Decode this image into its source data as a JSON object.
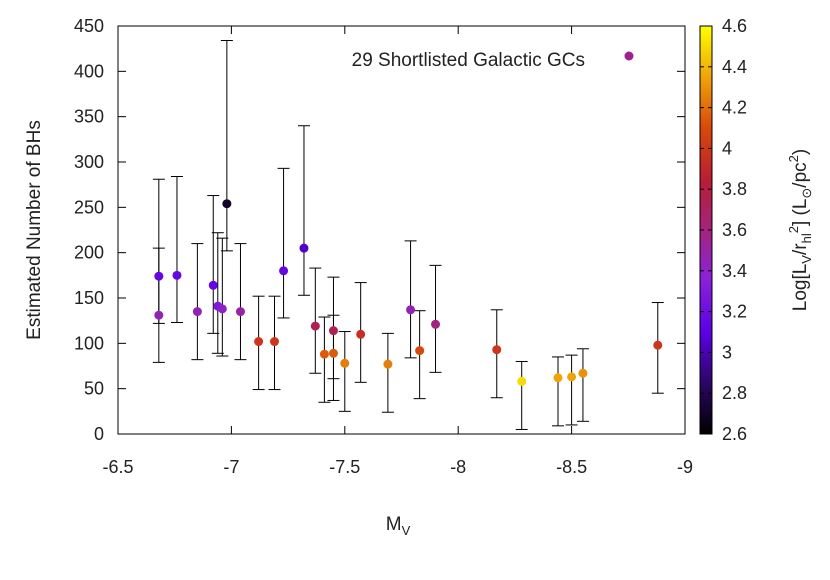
{
  "chart_data": {
    "type": "scatter",
    "title": "",
    "xlabel": "M",
    "xlabel_sub": "V",
    "ylabel": "Estimated Number of BHs",
    "xlim": [
      -6.5,
      -9
    ],
    "ylim": [
      0,
      450
    ],
    "x_ticks": [
      "-6.5",
      "-7",
      "-7.5",
      "-8",
      "-8.5",
      "-9"
    ],
    "y_ticks": [
      "0",
      "50",
      "100",
      "150",
      "200",
      "250",
      "300",
      "350",
      "400",
      "450"
    ],
    "legend": {
      "label": "29 Shortlisted Galactic GCs",
      "position": "top-right",
      "marker_color": "#a0208e"
    },
    "colorbar": {
      "label": "Log[L_V/r_hl^2] (L_⊙/pc^2)",
      "label_parts": {
        "pre": "Log[L",
        "sub1": "V",
        "mid1": "/r",
        "sub2": "hl",
        "sup1": "2",
        "mid2": "] (L",
        "sub3": "⊙",
        "mid3": "/pc",
        "sup2": "2",
        "post": ")"
      },
      "range": [
        2.6,
        4.6
      ],
      "ticks": [
        "2.6",
        "2.8",
        "3",
        "3.2",
        "3.4",
        "3.6",
        "3.8",
        "4",
        "4.2",
        "4.4",
        "4.6"
      ],
      "colormap": "black-blue-purple-red-orange-yellow"
    },
    "points": [
      {
        "x": -6.68,
        "y": 131,
        "lo": 79,
        "hi": 205,
        "c": 3.45
      },
      {
        "x": -6.68,
        "y": 174,
        "lo": 122,
        "hi": 281,
        "c": 3.15
      },
      {
        "x": -6.76,
        "y": 175,
        "lo": 123,
        "hi": 284,
        "c": 3.15
      },
      {
        "x": -6.85,
        "y": 135,
        "lo": 82,
        "hi": 210,
        "c": 3.45
      },
      {
        "x": -6.92,
        "y": 164,
        "lo": 111,
        "hi": 263,
        "c": 3.15
      },
      {
        "x": -6.94,
        "y": 141,
        "lo": 89,
        "hi": 222,
        "c": 3.3
      },
      {
        "x": -6.96,
        "y": 138,
        "lo": 86,
        "hi": 216,
        "c": 3.4
      },
      {
        "x": -6.98,
        "y": 254,
        "lo": 202,
        "hi": 434,
        "c": 2.7
      },
      {
        "x": -7.04,
        "y": 135,
        "lo": 82,
        "hi": 210,
        "c": 3.5
      },
      {
        "x": -7.12,
        "y": 102,
        "lo": 49,
        "hi": 152,
        "c": 4.0
      },
      {
        "x": -7.19,
        "y": 102,
        "lo": 49,
        "hi": 152,
        "c": 4.0
      },
      {
        "x": -7.23,
        "y": 180,
        "lo": 128,
        "hi": 293,
        "c": 3.15
      },
      {
        "x": -7.32,
        "y": 205,
        "lo": 153,
        "hi": 340,
        "c": 3.05
      },
      {
        "x": -7.37,
        "y": 119,
        "lo": 67,
        "hi": 183,
        "c": 3.75
      },
      {
        "x": -7.41,
        "y": 88,
        "lo": 35,
        "hi": 129,
        "c": 4.15
      },
      {
        "x": -7.45,
        "y": 114,
        "lo": 61,
        "hi": 173,
        "c": 3.75
      },
      {
        "x": -7.45,
        "y": 89,
        "lo": 37,
        "hi": 131,
        "c": 4.15
      },
      {
        "x": -7.5,
        "y": 78,
        "lo": 25,
        "hi": 113,
        "c": 4.25
      },
      {
        "x": -7.57,
        "y": 110,
        "lo": 57,
        "hi": 167,
        "c": 3.95
      },
      {
        "x": -7.69,
        "y": 77,
        "lo": 24,
        "hi": 111,
        "c": 4.25
      },
      {
        "x": -7.79,
        "y": 137,
        "lo": 84,
        "hi": 213,
        "c": 3.45
      },
      {
        "x": -7.83,
        "y": 92,
        "lo": 39,
        "hi": 136,
        "c": 4.1
      },
      {
        "x": -7.9,
        "y": 121,
        "lo": 68,
        "hi": 186,
        "c": 3.6
      },
      {
        "x": -8.17,
        "y": 93,
        "lo": 40,
        "hi": 137,
        "c": 4.0
      },
      {
        "x": -8.28,
        "y": 58,
        "lo": 5,
        "hi": 80,
        "c": 4.5
      },
      {
        "x": -8.44,
        "y": 62,
        "lo": 9,
        "hi": 85,
        "c": 4.35
      },
      {
        "x": -8.5,
        "y": 63,
        "lo": 10,
        "hi": 87,
        "c": 4.35
      },
      {
        "x": -8.55,
        "y": 67,
        "lo": 14,
        "hi": 94,
        "c": 4.3
      },
      {
        "x": -8.88,
        "y": 98,
        "lo": 45,
        "hi": 145,
        "c": 4.0
      }
    ]
  }
}
